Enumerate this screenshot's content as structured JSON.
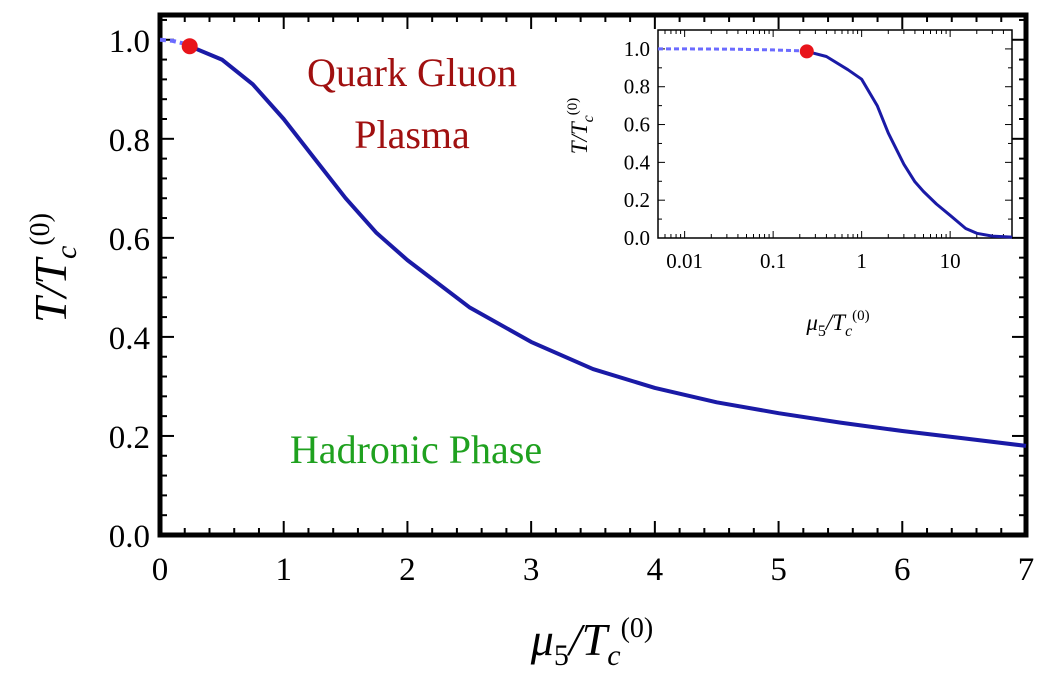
{
  "chart_data": [
    {
      "type": "line",
      "xlabel": "μ5/Tc(0)",
      "ylabel": "T/Tc(0)",
      "xlim": [
        0,
        7
      ],
      "ylim": [
        0,
        1.05
      ],
      "x_ticks": [
        "0",
        "1",
        "2",
        "3",
        "4",
        "5",
        "6",
        "7"
      ],
      "y_ticks": [
        "0.0",
        "0.2",
        "0.4",
        "0.6",
        "0.8",
        "1.0"
      ],
      "annotations": {
        "qgp_line1": "Quark Gluon",
        "qgp_line2": "Plasma",
        "hadronic": "Hadronic Phase"
      },
      "series": [
        {
          "style": "dashed",
          "color": "#6b6bff",
          "x": [
            0,
            0.1,
            0.2,
            0.24
          ],
          "y": [
            1.0,
            0.998,
            0.992,
            0.987
          ]
        },
        {
          "style": "solid",
          "color": "#1a1aa6",
          "x": [
            0.24,
            0.5,
            0.75,
            1.0,
            1.25,
            1.5,
            1.75,
            2.0,
            2.5,
            3.0,
            3.5,
            4.0,
            4.5,
            5.0,
            5.5,
            6.0,
            6.5,
            7.0
          ],
          "y": [
            0.987,
            0.96,
            0.91,
            0.84,
            0.76,
            0.68,
            0.61,
            0.555,
            0.46,
            0.39,
            0.335,
            0.297,
            0.268,
            0.246,
            0.227,
            0.21,
            0.195,
            0.18
          ]
        }
      ],
      "critical_point": {
        "x": 0.24,
        "y": 0.987,
        "color": "#e8141b"
      },
      "grid": false
    },
    {
      "type": "line",
      "xscale": "log",
      "xlabel": "μ5/Tc(0)",
      "ylabel": "T/Tc(0)",
      "xlim": [
        0.005,
        50
      ],
      "ylim": [
        0,
        1.1
      ],
      "x_ticks": [
        "0.01",
        "0.1",
        "1",
        "10"
      ],
      "y_ticks": [
        "0.0",
        "0.2",
        "0.4",
        "0.6",
        "0.8",
        "1.0"
      ],
      "series": [
        {
          "style": "dashed",
          "color": "#6b6bff",
          "x": [
            0.005,
            0.01,
            0.03,
            0.1,
            0.2,
            0.24
          ],
          "y": [
            1.0,
            1.0,
            0.999,
            0.995,
            0.99,
            0.987
          ]
        },
        {
          "style": "solid",
          "color": "#1a1aa6",
          "x": [
            0.24,
            0.4,
            0.7,
            1.0,
            1.5,
            2.0,
            3.0,
            4.0,
            5.0,
            7.0,
            10,
            15,
            20,
            30,
            50
          ],
          "y": [
            0.987,
            0.96,
            0.89,
            0.84,
            0.7,
            0.555,
            0.39,
            0.297,
            0.246,
            0.18,
            0.12,
            0.05,
            0.025,
            0.01,
            0.005
          ]
        }
      ],
      "critical_point": {
        "x": 0.24,
        "y": 0.987,
        "color": "#e8141b"
      },
      "grid": false
    }
  ],
  "colors": {
    "qgp_text": "#a01010",
    "hadronic_text": "#1fa11f"
  }
}
